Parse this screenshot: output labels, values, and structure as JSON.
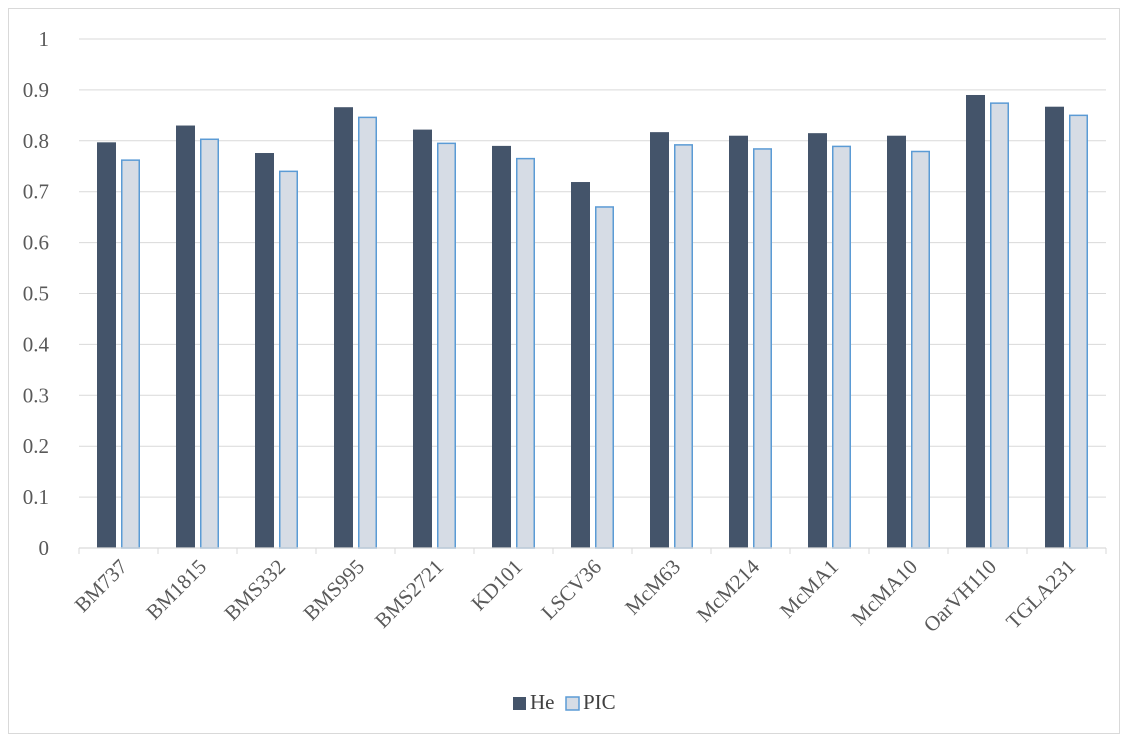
{
  "chart_data": {
    "type": "bar",
    "categories": [
      "BM737",
      "BM1815",
      "BMS332",
      "BMS995",
      "BMS2721",
      "KD101",
      "LSCV36",
      "McM63",
      "McM214",
      "McMA1",
      "McMA10",
      "OarVH110",
      "TGLA231"
    ],
    "series": [
      {
        "name": "He",
        "color": "#44546a",
        "values": [
          0.797,
          0.83,
          0.776,
          0.866,
          0.822,
          0.79,
          0.719,
          0.817,
          0.81,
          0.815,
          0.81,
          0.89,
          0.867
        ]
      },
      {
        "name": "PIC",
        "color": "#d6dce5",
        "stroke": "#5b9bd5",
        "values": [
          0.762,
          0.803,
          0.74,
          0.846,
          0.795,
          0.765,
          0.67,
          0.792,
          0.784,
          0.789,
          0.779,
          0.874,
          0.85
        ]
      }
    ],
    "title": "",
    "xlabel": "",
    "ylabel": "",
    "ylim": [
      0,
      1
    ],
    "yticks": [
      "0",
      "0.1",
      "0.2",
      "0.3",
      "0.4",
      "0.5",
      "0.6",
      "0.7",
      "0.8",
      "0.9",
      "1"
    ],
    "grid": true,
    "legend": "bottom"
  }
}
